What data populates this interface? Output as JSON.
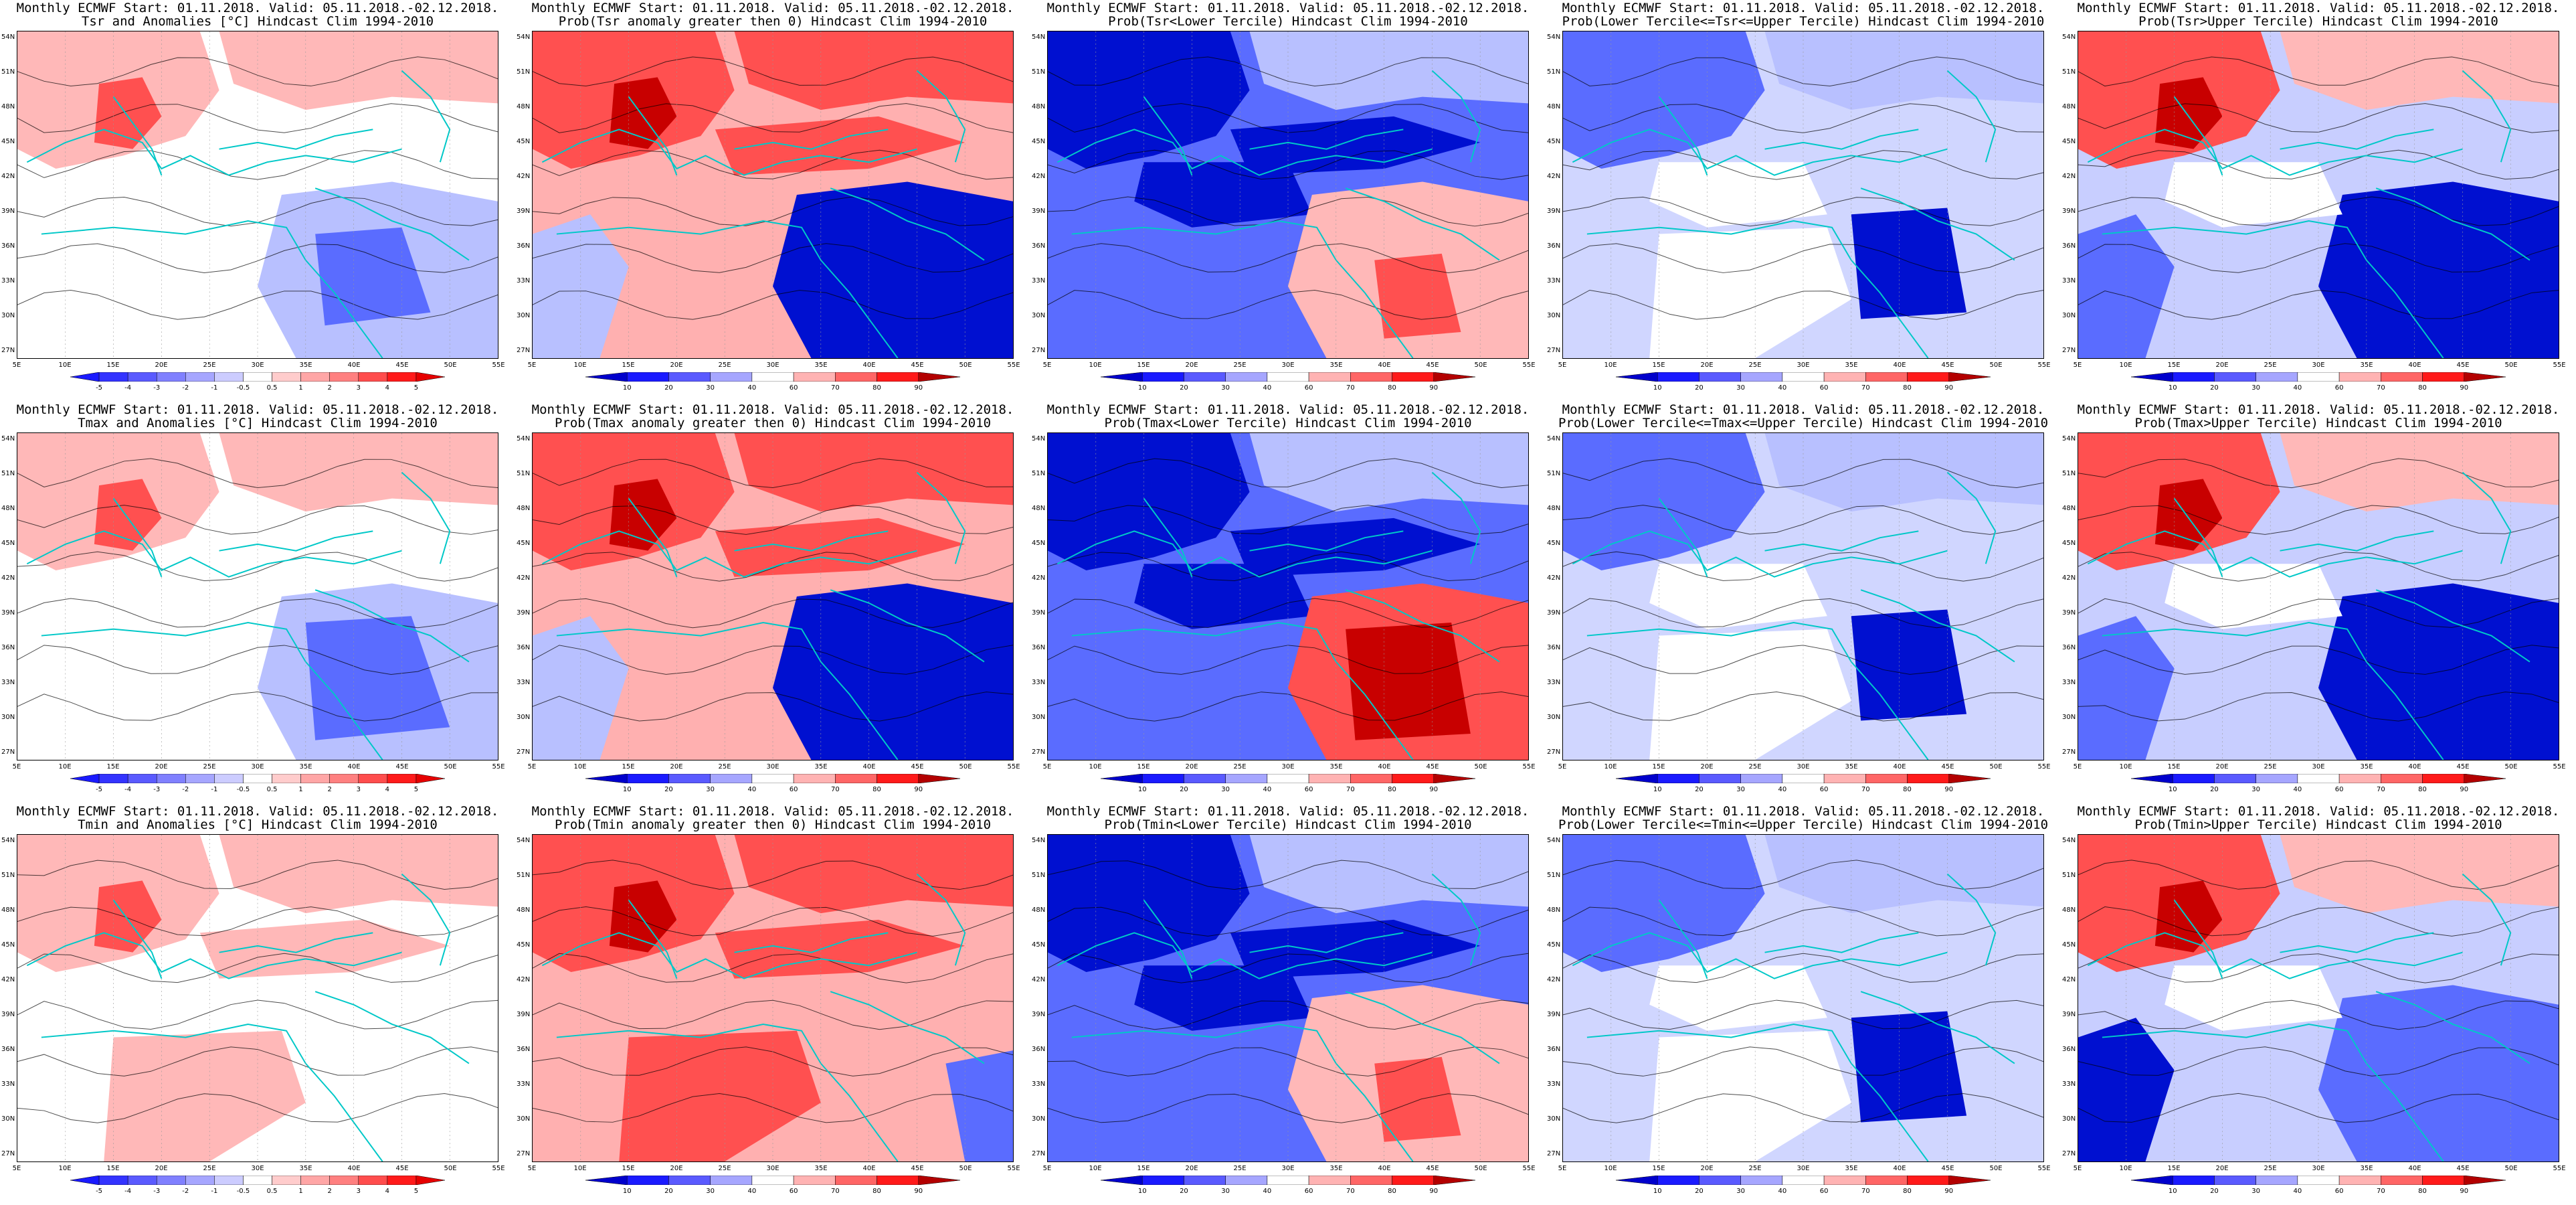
{
  "panels": [
    {
      "row": 0,
      "col": 0,
      "title1": "Monthly ECMWF Start: 01.11.2018. Valid: 05.11.2018.-02.12.2018.",
      "title2": "Tsr and Anomalies [°C] Hindcast Clim 1994-2010",
      "cbar": "anom",
      "pattern": "anomTsr"
    },
    {
      "row": 0,
      "col": 1,
      "title1": "Monthly ECMWF Start: 01.11.2018. Valid: 05.11.2018.-02.12.2018.",
      "title2": "Prob(Tsr anomaly greater then 0) Hindcast Clim 1994-2010",
      "cbar": "prob",
      "pattern": "probPos"
    },
    {
      "row": 0,
      "col": 2,
      "title1": "Monthly ECMWF Start: 01.11.2018. Valid: 05.11.2018.-02.12.2018.",
      "title2": "Prob(Tsr<Lower Tercile) Hindcast Clim 1994-2010",
      "cbar": "prob",
      "pattern": "probLower"
    },
    {
      "row": 0,
      "col": 3,
      "title1": "Monthly ECMWF Start: 01.11.2018. Valid: 05.11.2018.-02.12.2018.",
      "title2": "Prob(Lower Tercile<=Tsr<=Upper Tercile) Hindcast Clim 1994-2010",
      "cbar": "prob",
      "pattern": "probMid"
    },
    {
      "row": 0,
      "col": 4,
      "title1": "Monthly ECMWF Start: 01.11.2018. Valid: 05.11.2018.-02.12.2018.",
      "title2": "Prob(Tsr>Upper Tercile) Hindcast Clim 1994-2010",
      "cbar": "prob",
      "pattern": "probUpper"
    },
    {
      "row": 1,
      "col": 0,
      "title1": "Monthly ECMWF Start: 01.11.2018. Valid: 05.11.2018.-02.12.2018.",
      "title2": "Tmax and Anomalies [°C] Hindcast Clim 1994-2010",
      "cbar": "anom",
      "pattern": "anomTmax"
    },
    {
      "row": 1,
      "col": 1,
      "title1": "Monthly ECMWF Start: 01.11.2018. Valid: 05.11.2018.-02.12.2018.",
      "title2": "Prob(Tmax anomaly greater then 0) Hindcast Clim 1994-2010",
      "cbar": "prob",
      "pattern": "probPos"
    },
    {
      "row": 1,
      "col": 2,
      "title1": "Monthly ECMWF Start: 01.11.2018. Valid: 05.11.2018.-02.12.2018.",
      "title2": "Prob(Tmax<Lower Tercile) Hindcast Clim 1994-2010",
      "cbar": "prob",
      "pattern": "probLowerTmax"
    },
    {
      "row": 1,
      "col": 3,
      "title1": "Monthly ECMWF Start: 01.11.2018. Valid: 05.11.2018.-02.12.2018.",
      "title2": "Prob(Lower Tercile<=Tmax<=Upper Tercile) Hindcast Clim 1994-2010",
      "cbar": "prob",
      "pattern": "probMid"
    },
    {
      "row": 1,
      "col": 4,
      "title1": "Monthly ECMWF Start: 01.11.2018. Valid: 05.11.2018.-02.12.2018.",
      "title2": "Prob(Tmax>Upper Tercile) Hindcast Clim 1994-2010",
      "cbar": "prob",
      "pattern": "probUpper"
    },
    {
      "row": 2,
      "col": 0,
      "title1": "Monthly ECMWF Start: 01.11.2018. Valid: 05.11.2018.-02.12.2018.",
      "title2": "Tmin and Anomalies [°C] Hindcast Clim 1994-2010",
      "cbar": "anom",
      "pattern": "anomTmin"
    },
    {
      "row": 2,
      "col": 1,
      "title1": "Monthly ECMWF Start: 01.11.2018. Valid: 05.11.2018.-02.12.2018.",
      "title2": "Prob(Tmin anomaly greater then 0) Hindcast Clim 1994-2010",
      "cbar": "prob",
      "pattern": "probPosTmin"
    },
    {
      "row": 2,
      "col": 2,
      "title1": "Monthly ECMWF Start: 01.11.2018. Valid: 05.11.2018.-02.12.2018.",
      "title2": "Prob(Tmin<Lower Tercile) Hindcast Clim 1994-2010",
      "cbar": "prob",
      "pattern": "probLower"
    },
    {
      "row": 2,
      "col": 3,
      "title1": "Monthly ECMWF Start: 01.11.2018. Valid: 05.11.2018.-02.12.2018.",
      "title2": "Prob(Lower Tercile<=Tmin<=Upper Tercile) Hindcast Clim 1994-2010",
      "cbar": "prob",
      "pattern": "probMid"
    },
    {
      "row": 2,
      "col": 4,
      "title1": "Monthly ECMWF Start: 01.11.2018. Valid: 05.11.2018.-02.12.2018.",
      "title2": "Prob(Tmin>Upper Tercile) Hindcast Clim 1994-2010",
      "cbar": "prob",
      "pattern": "probUpperTmin"
    }
  ],
  "lat_labels": [
    "54N",
    "51N",
    "48N",
    "45N",
    "42N",
    "39N",
    "36N",
    "33N",
    "30N",
    "27N"
  ],
  "lon_labels": [
    "5E",
    "10E",
    "15E",
    "20E",
    "25E",
    "30E",
    "35E",
    "40E",
    "45E",
    "50E",
    "55E"
  ],
  "colorbars": {
    "anom": {
      "ticks": [
        "-5",
        "-4",
        "-3",
        "-2",
        "-1",
        "-0.5",
        "0.5",
        "1",
        "2",
        "3",
        "4",
        "5"
      ],
      "colors": [
        "#1a1aff",
        "#3333ff",
        "#5a5aff",
        "#8080ff",
        "#a6a6ff",
        "#ccccff",
        "#ffffff",
        "#ffcccc",
        "#ffa6a6",
        "#ff8080",
        "#ff4d4d",
        "#ff1a1a",
        "#e60000"
      ]
    },
    "prob": {
      "ticks": [
        "10",
        "20",
        "30",
        "40",
        "60",
        "70",
        "80",
        "90"
      ],
      "colors": [
        "#0000cc",
        "#1a1aff",
        "#5a5aff",
        "#a6a6ff",
        "#ffffff",
        "#ffb3b3",
        "#ff6666",
        "#ff1a1a",
        "#b30000"
      ]
    }
  },
  "colors": {
    "coast": "#00c8c8",
    "contour": "#000000",
    "deep_blue": "#0010d0",
    "mid_blue": "#5a6cff",
    "light_blue": "#b8c0ff",
    "light_red": "#ffb8b8",
    "mid_red": "#ff5050",
    "deep_red": "#c80000"
  }
}
